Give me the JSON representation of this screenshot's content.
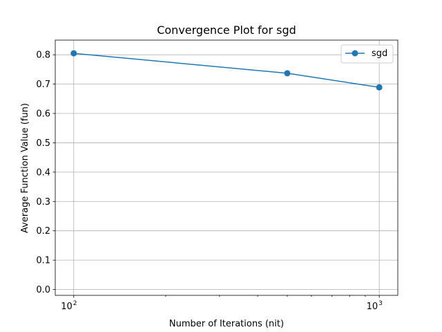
{
  "chart_data": {
    "type": "line",
    "title": "Convergence Plot for sgd",
    "xlabel": "Number of Iterations (nit)",
    "ylabel": "Average Function Value (fun)",
    "x_scale": "log",
    "xlim": [
      87,
      1150
    ],
    "ylim": [
      -0.02,
      0.85
    ],
    "x_ticks": [
      {
        "value": 100,
        "base": "10",
        "exp": "2"
      },
      {
        "value": 1000,
        "base": "10",
        "exp": "3"
      }
    ],
    "y_ticks": [
      {
        "value": 0.0,
        "label": "0.0"
      },
      {
        "value": 0.1,
        "label": "0.1"
      },
      {
        "value": 0.2,
        "label": "0.2"
      },
      {
        "value": 0.3,
        "label": "0.3"
      },
      {
        "value": 0.4,
        "label": "0.4"
      },
      {
        "value": 0.5,
        "label": "0.5"
      },
      {
        "value": 0.6,
        "label": "0.6"
      },
      {
        "value": 0.7,
        "label": "0.7"
      },
      {
        "value": 0.8,
        "label": "0.8"
      }
    ],
    "grid": true,
    "legend_position": "top-right",
    "series": [
      {
        "name": "sgd",
        "color": "#1f77b4",
        "marker": "circle",
        "x": [
          100,
          500,
          1000
        ],
        "y": [
          0.805,
          0.737,
          0.689
        ]
      }
    ]
  }
}
